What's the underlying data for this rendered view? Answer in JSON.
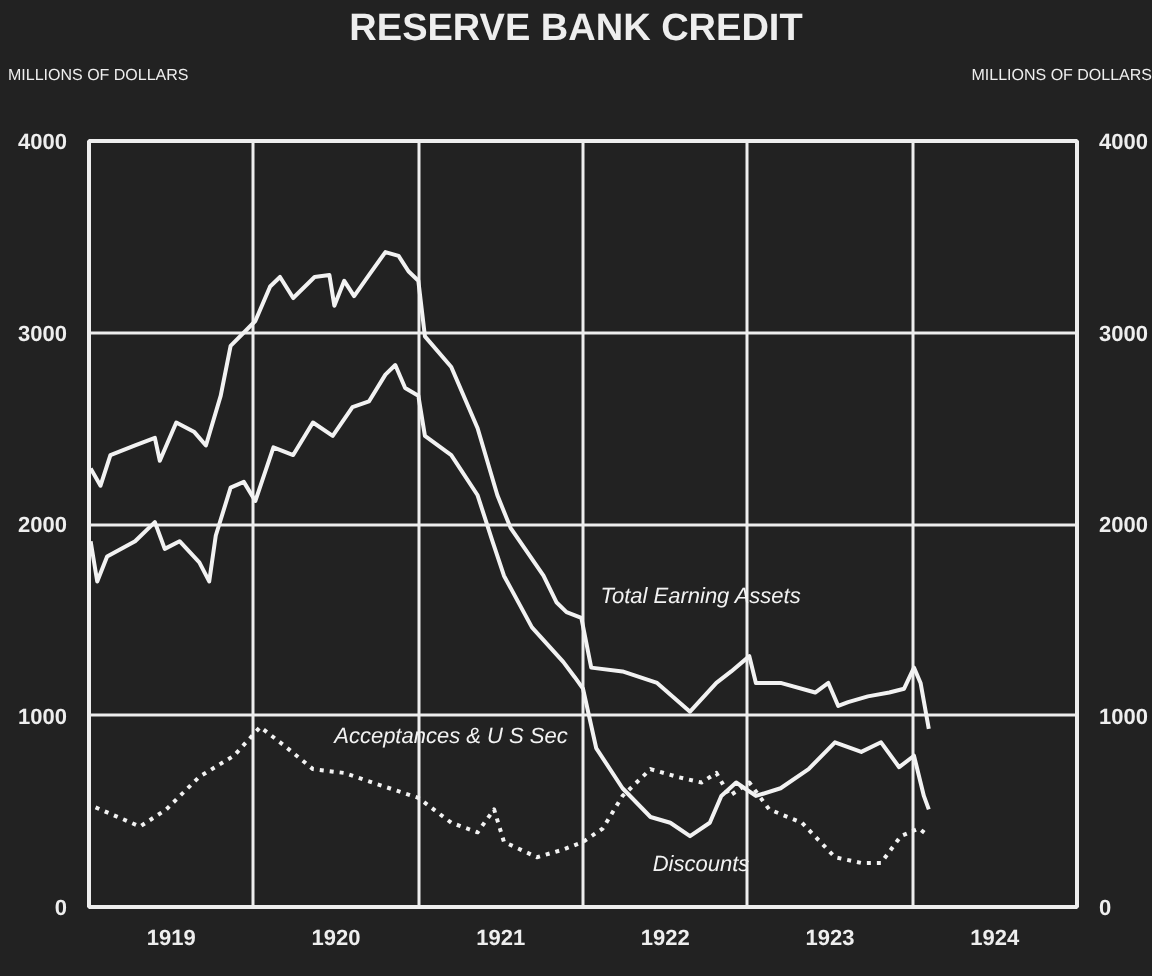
{
  "chart_data": {
    "type": "line",
    "title": "RESERVE BANK CREDIT",
    "ylabel": "MILLIONS OF DOLLARS",
    "y2label": "MILLIONS OF DOLLARS",
    "xlim": [
      1919,
      1925
    ],
    "xticks": [
      {
        "value": 1919.5,
        "label": "1919"
      },
      {
        "value": 1920,
        "label": null
      },
      {
        "value": 1920.5,
        "label": "1920"
      },
      {
        "value": 1921,
        "label": null
      },
      {
        "value": 1921.5,
        "label": "1921"
      },
      {
        "value": 1922,
        "label": null
      },
      {
        "value": 1922.5,
        "label": "1922"
      },
      {
        "value": 1923,
        "label": null
      },
      {
        "value": 1923.5,
        "label": "1923"
      },
      {
        "value": 1924,
        "label": null
      },
      {
        "value": 1924.5,
        "label": "1924"
      }
    ],
    "ylim": [
      0,
      4000
    ],
    "yticks": [
      0,
      1000,
      2000,
      3000,
      4000
    ],
    "y2lim": [
      0,
      4000
    ],
    "y2ticks": [
      0,
      1000,
      2000,
      3000,
      4000
    ],
    "grid": true,
    "line_style": "solid",
    "series": [
      {
        "name": "Total Earning Assets",
        "color": "#f2f2f2",
        "x": [
          1919.01,
          1919.07,
          1919.13,
          1919.28,
          1919.4,
          1919.43,
          1919.53,
          1919.64,
          1919.71,
          1919.8,
          1919.86,
          1920.01,
          1920.1,
          1920.16,
          1920.24,
          1920.37,
          1920.46,
          1920.49,
          1920.55,
          1920.61,
          1920.7,
          1920.8,
          1920.88,
          1920.94,
          1921.0,
          1921.04,
          1921.2,
          1921.36,
          1921.48,
          1921.56,
          1921.76,
          1921.84,
          1921.9,
          1921.99,
          1922.05,
          1922.24,
          1922.45,
          1922.65,
          1922.81,
          1922.9,
          1923.01,
          1923.05,
          1923.2,
          1923.41,
          1923.49,
          1923.55,
          1923.61,
          1923.73,
          1923.86,
          1923.95,
          1924.01,
          1924.05,
          1924.1
        ],
        "values": [
          2290,
          2200,
          2360,
          2410,
          2450,
          2330,
          2530,
          2480,
          2410,
          2670,
          2930,
          3060,
          3240,
          3290,
          3180,
          3290,
          3300,
          3140,
          3270,
          3190,
          3300,
          3420,
          3400,
          3320,
          3270,
          2980,
          2820,
          2500,
          2150,
          1980,
          1730,
          1590,
          1540,
          1510,
          1250,
          1230,
          1170,
          1020,
          1170,
          1230,
          1310,
          1170,
          1170,
          1120,
          1170,
          1050,
          1070,
          1100,
          1120,
          1140,
          1250,
          1170,
          930
        ]
      },
      {
        "name": "Discounts",
        "color": "#f2f2f2",
        "x": [
          1919.01,
          1919.05,
          1919.11,
          1919.28,
          1919.4,
          1919.46,
          1919.55,
          1919.67,
          1919.73,
          1919.77,
          1919.86,
          1919.94,
          1920.01,
          1920.12,
          1920.24,
          1920.36,
          1920.48,
          1920.6,
          1920.7,
          1920.8,
          1920.86,
          1920.92,
          1921.0,
          1921.04,
          1921.2,
          1921.36,
          1921.45,
          1921.52,
          1921.69,
          1921.88,
          1921.95,
          1922.0,
          1922.08,
          1922.24,
          1922.41,
          1922.53,
          1922.65,
          1922.77,
          1922.84,
          1922.93,
          1923.05,
          1923.2,
          1923.37,
          1923.53,
          1923.69,
          1923.81,
          1923.92,
          1924.01,
          1924.07,
          1924.1
        ],
        "values": [
          1910,
          1700,
          1830,
          1910,
          2010,
          1870,
          1910,
          1800,
          1700,
          1940,
          2190,
          2220,
          2120,
          2400,
          2360,
          2530,
          2460,
          2610,
          2640,
          2780,
          2830,
          2710,
          2670,
          2460,
          2360,
          2150,
          1910,
          1730,
          1460,
          1280,
          1200,
          1140,
          830,
          620,
          470,
          440,
          370,
          440,
          580,
          650,
          580,
          620,
          720,
          860,
          810,
          860,
          730,
          790,
          580,
          510
        ]
      },
      {
        "name": "Acceptances & U S Sec",
        "color": "#f2f2f2",
        "line_style": "dotted",
        "x": [
          1919.04,
          1919.31,
          1919.47,
          1919.67,
          1919.88,
          1920.04,
          1920.19,
          1920.36,
          1920.55,
          1920.72,
          1921.0,
          1921.2,
          1921.36,
          1921.46,
          1921.52,
          1921.72,
          1921.88,
          1922.0,
          1922.12,
          1922.24,
          1922.41,
          1922.57,
          1922.72,
          1922.81,
          1922.89,
          1923.01,
          1923.13,
          1923.33,
          1923.53,
          1923.69,
          1923.81,
          1923.93,
          1924.04,
          1924.1
        ],
        "values": [
          520,
          420,
          510,
          680,
          790,
          940,
          840,
          720,
          700,
          650,
          570,
          440,
          390,
          510,
          340,
          260,
          300,
          340,
          410,
          580,
          720,
          680,
          650,
          700,
          580,
          650,
          510,
          440,
          260,
          230,
          230,
          370,
          410,
          370
        ]
      }
    ]
  }
}
